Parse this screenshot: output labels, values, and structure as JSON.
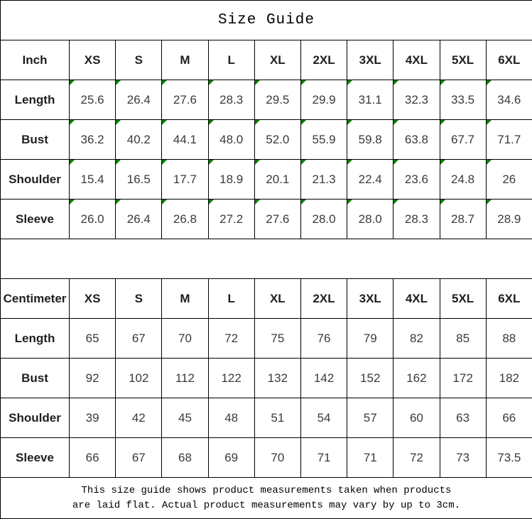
{
  "title": "Size Guide",
  "colors": {
    "flag_green": "#008000",
    "border": "#000000",
    "background": "#ffffff"
  },
  "tables": [
    {
      "unit": "Inch",
      "flags": true,
      "header": [
        "Inch",
        "XS",
        "S",
        "M",
        "L",
        "XL",
        "2XL",
        "3XL",
        "4XL",
        "5XL",
        "6XL"
      ],
      "rows": [
        {
          "label": "Length",
          "values": [
            "25.6",
            "26.4",
            "27.6",
            "28.3",
            "29.5",
            "29.9",
            "31.1",
            "32.3",
            "33.5",
            "34.6"
          ]
        },
        {
          "label": "Bust",
          "values": [
            "36.2",
            "40.2",
            "44.1",
            "48.0",
            "52.0",
            "55.9",
            "59.8",
            "63.8",
            "67.7",
            "71.7"
          ]
        },
        {
          "label": "Shoulder",
          "values": [
            "15.4",
            "16.5",
            "17.7",
            "18.9",
            "20.1",
            "21.3",
            "22.4",
            "23.6",
            "24.8",
            "26"
          ]
        },
        {
          "label": "Sleeve",
          "values": [
            "26.0",
            "26.4",
            "26.8",
            "27.2",
            "27.6",
            "28.0",
            "28.0",
            "28.3",
            "28.7",
            "28.9"
          ]
        }
      ]
    },
    {
      "unit": "Centimeter",
      "flags": false,
      "header": [
        "Centimeter",
        "XS",
        "S",
        "M",
        "L",
        "XL",
        "2XL",
        "3XL",
        "4XL",
        "5XL",
        "6XL"
      ],
      "rows": [
        {
          "label": "Length",
          "values": [
            "65",
            "67",
            "70",
            "72",
            "75",
            "76",
            "79",
            "82",
            "85",
            "88"
          ]
        },
        {
          "label": "Bust",
          "values": [
            "92",
            "102",
            "112",
            "122",
            "132",
            "142",
            "152",
            "162",
            "172",
            "182"
          ]
        },
        {
          "label": "Shoulder",
          "values": [
            "39",
            "42",
            "45",
            "48",
            "51",
            "54",
            "57",
            "60",
            "63",
            "66"
          ]
        },
        {
          "label": "Sleeve",
          "values": [
            "66",
            "67",
            "68",
            "69",
            "70",
            "71",
            "71",
            "72",
            "73",
            "73.5"
          ]
        }
      ]
    }
  ],
  "footer": {
    "line1": "This size guide shows product measurements taken when products",
    "line2": "are laid flat. Actual product measurements may vary by up to 3cm."
  },
  "chart_data": [
    {
      "type": "table",
      "title": "Size Guide (Inch)",
      "columns": [
        "Inch",
        "XS",
        "S",
        "M",
        "L",
        "XL",
        "2XL",
        "3XL",
        "4XL",
        "5XL",
        "6XL"
      ],
      "rows": [
        [
          "Length",
          25.6,
          26.4,
          27.6,
          28.3,
          29.5,
          29.9,
          31.1,
          32.3,
          33.5,
          34.6
        ],
        [
          "Bust",
          36.2,
          40.2,
          44.1,
          48.0,
          52.0,
          55.9,
          59.8,
          63.8,
          67.7,
          71.7
        ],
        [
          "Shoulder",
          15.4,
          16.5,
          17.7,
          18.9,
          20.1,
          21.3,
          22.4,
          23.6,
          24.8,
          26
        ],
        [
          "Sleeve",
          26.0,
          26.4,
          26.8,
          27.2,
          27.6,
          28.0,
          28.0,
          28.3,
          28.7,
          28.9
        ]
      ]
    },
    {
      "type": "table",
      "title": "Size Guide (Centimeter)",
      "columns": [
        "Centimeter",
        "XS",
        "S",
        "M",
        "L",
        "XL",
        "2XL",
        "3XL",
        "4XL",
        "5XL",
        "6XL"
      ],
      "rows": [
        [
          "Length",
          65,
          67,
          70,
          72,
          75,
          76,
          79,
          82,
          85,
          88
        ],
        [
          "Bust",
          92,
          102,
          112,
          122,
          132,
          142,
          152,
          162,
          172,
          182
        ],
        [
          "Shoulder",
          39,
          42,
          45,
          48,
          51,
          54,
          57,
          60,
          63,
          66
        ],
        [
          "Sleeve",
          66,
          67,
          68,
          69,
          70,
          71,
          71,
          72,
          73,
          73.5
        ]
      ]
    }
  ]
}
